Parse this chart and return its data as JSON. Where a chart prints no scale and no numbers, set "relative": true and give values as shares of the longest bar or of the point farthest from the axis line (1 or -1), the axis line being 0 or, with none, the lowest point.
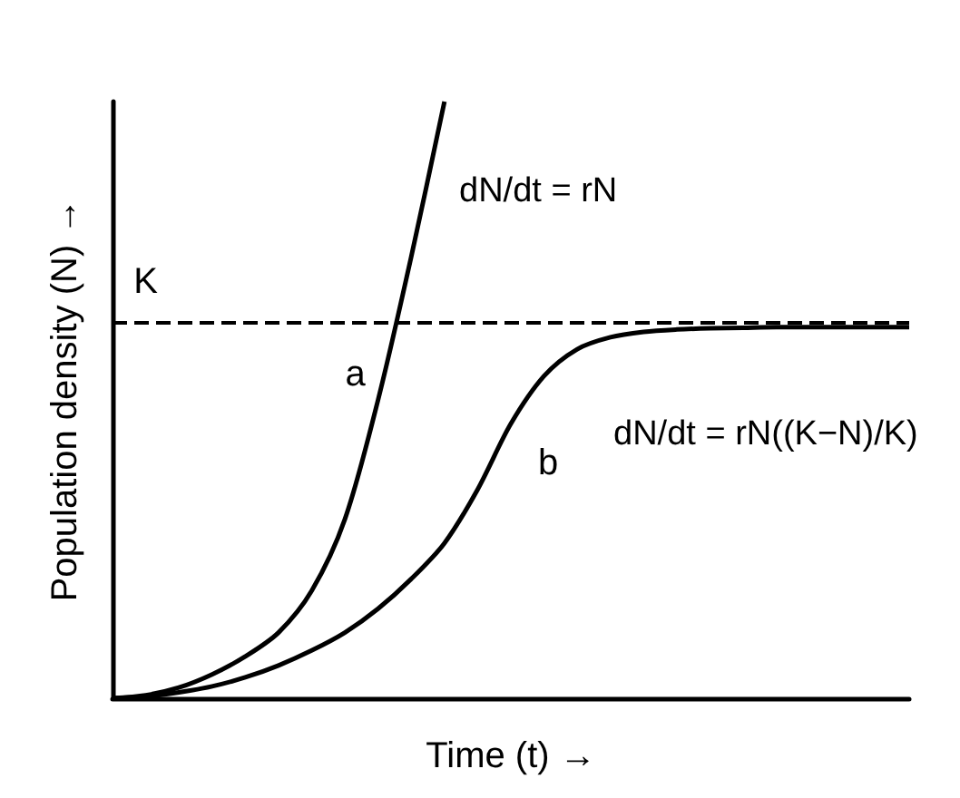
{
  "chart_data": {
    "type": "line",
    "relative": true,
    "xlabel": "Time (t) →",
    "ylabel": "Population density (N) →",
    "categories": [
      null,
      null,
      null,
      null,
      null,
      null,
      null,
      null,
      null,
      null,
      null,
      null,
      null,
      null,
      null,
      null,
      null,
      null,
      null,
      null,
      null,
      null,
      null,
      null,
      null
    ],
    "series": [
      {
        "name": "a",
        "color": "#000000",
        "values": [
          0,
          0.005,
          0.018,
          0.04,
          0.07,
          0.11,
          0.18,
          0.3,
          0.5,
          0.74,
          1.0,
          null,
          null,
          null,
          null,
          null,
          null,
          null,
          null,
          null,
          null,
          null,
          null,
          null,
          null
        ]
      },
      {
        "name": "b",
        "color": "#000000",
        "values": [
          0,
          0.003,
          0.01,
          0.02,
          0.035,
          0.055,
          0.08,
          0.11,
          0.15,
          0.2,
          0.26,
          0.35,
          0.46,
          0.54,
          0.585,
          0.605,
          0.614,
          0.618,
          0.62,
          0.621,
          0.622,
          0.622,
          0.622,
          0.622,
          0.622
        ]
      }
    ],
    "ref_lines": [
      {
        "axis": "y",
        "value": 0.63,
        "label": "K",
        "color": "#000000",
        "line_style": "dashed"
      }
    ],
    "annotations": [
      "dN/dt = rN",
      "dN/dt = rN((K−N)/K)"
    ],
    "line_style": "solid",
    "legend": false,
    "grid": false
  }
}
